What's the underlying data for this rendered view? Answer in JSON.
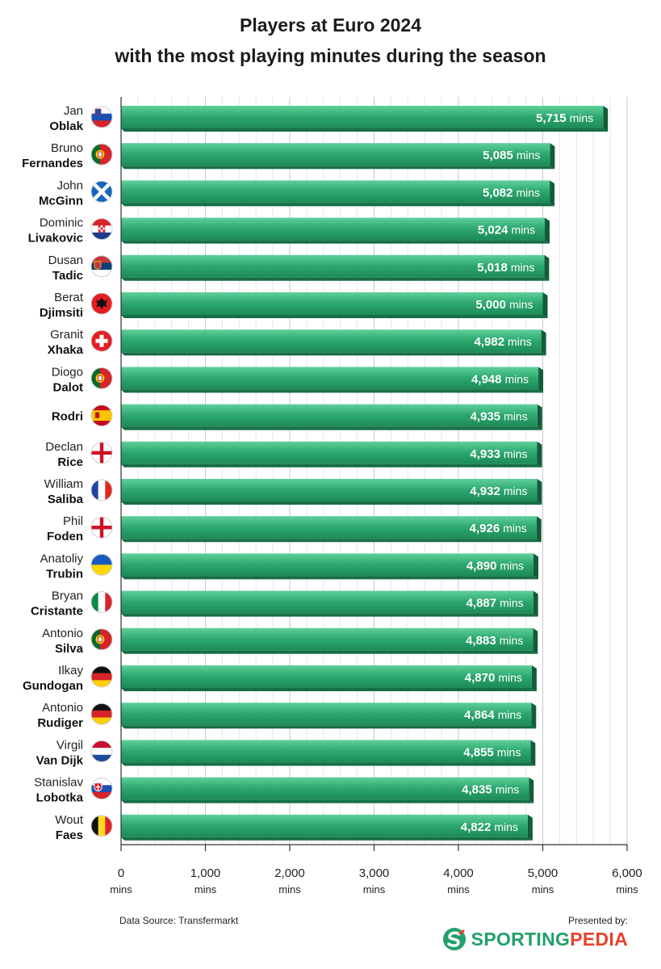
{
  "title_line1": "Players at Euro 2024",
  "title_line2": "with the most playing minutes during the season",
  "source": "Data Source: Transfermarkt",
  "presented_by": "Presented by:",
  "brand": {
    "part1": "SPORTING",
    "part2": "PEDIA"
  },
  "chart_data": {
    "type": "bar",
    "orientation": "horizontal",
    "unit": "mins",
    "xlim": [
      0,
      6000
    ],
    "xticks": [
      0,
      1000,
      2000,
      3000,
      4000,
      5000,
      6000
    ],
    "xtick_labels": [
      "0",
      "1,000",
      "2,000",
      "3,000",
      "4,000",
      "5,000",
      "6,000"
    ],
    "grid": "vertical",
    "bar_color": "#2ca66e",
    "players": [
      {
        "first": "Jan",
        "last": "Oblak",
        "country": "Slovenia",
        "value": 5715,
        "label": "5,715"
      },
      {
        "first": "Bruno",
        "last": "Fernandes",
        "country": "Portugal",
        "value": 5085,
        "label": "5,085"
      },
      {
        "first": "John",
        "last": "McGinn",
        "country": "Scotland",
        "value": 5082,
        "label": "5,082"
      },
      {
        "first": "Dominic",
        "last": "Livakovic",
        "country": "Croatia",
        "value": 5024,
        "label": "5,024"
      },
      {
        "first": "Dusan",
        "last": "Tadic",
        "country": "Serbia",
        "value": 5018,
        "label": "5,018"
      },
      {
        "first": "Berat",
        "last": "Djimsiti",
        "country": "Albania",
        "value": 5000,
        "label": "5,000"
      },
      {
        "first": "Granit",
        "last": "Xhaka",
        "country": "Switzerland",
        "value": 4982,
        "label": "4,982"
      },
      {
        "first": "Diogo",
        "last": "Dalot",
        "country": "Portugal",
        "value": 4948,
        "label": "4,948"
      },
      {
        "first": "",
        "last": "Rodri",
        "country": "Spain",
        "value": 4935,
        "label": "4,935"
      },
      {
        "first": "Declan",
        "last": "Rice",
        "country": "England",
        "value": 4933,
        "label": "4,933"
      },
      {
        "first": "William",
        "last": "Saliba",
        "country": "France",
        "value": 4932,
        "label": "4,932"
      },
      {
        "first": "Phil",
        "last": "Foden",
        "country": "England",
        "value": 4926,
        "label": "4,926"
      },
      {
        "first": "Anatoliy",
        "last": "Trubin",
        "country": "Ukraine",
        "value": 4890,
        "label": "4,890"
      },
      {
        "first": "Bryan",
        "last": "Cristante",
        "country": "Italy",
        "value": 4887,
        "label": "4,887"
      },
      {
        "first": "Antonio",
        "last": "Silva",
        "country": "Portugal",
        "value": 4883,
        "label": "4,883"
      },
      {
        "first": "Ilkay",
        "last": "Gundogan",
        "country": "Germany",
        "value": 4870,
        "label": "4,870"
      },
      {
        "first": "Antonio",
        "last": "Rudiger",
        "country": "Germany",
        "value": 4864,
        "label": "4,864"
      },
      {
        "first": "Virgil",
        "last": "Van Dijk",
        "country": "Netherlands",
        "value": 4855,
        "label": "4,855"
      },
      {
        "first": "Stanislav",
        "last": "Lobotka",
        "country": "Slovakia",
        "value": 4835,
        "label": "4,835"
      },
      {
        "first": "Wout",
        "last": "Faes",
        "country": "Belgium",
        "value": 4822,
        "label": "4,822"
      }
    ]
  }
}
